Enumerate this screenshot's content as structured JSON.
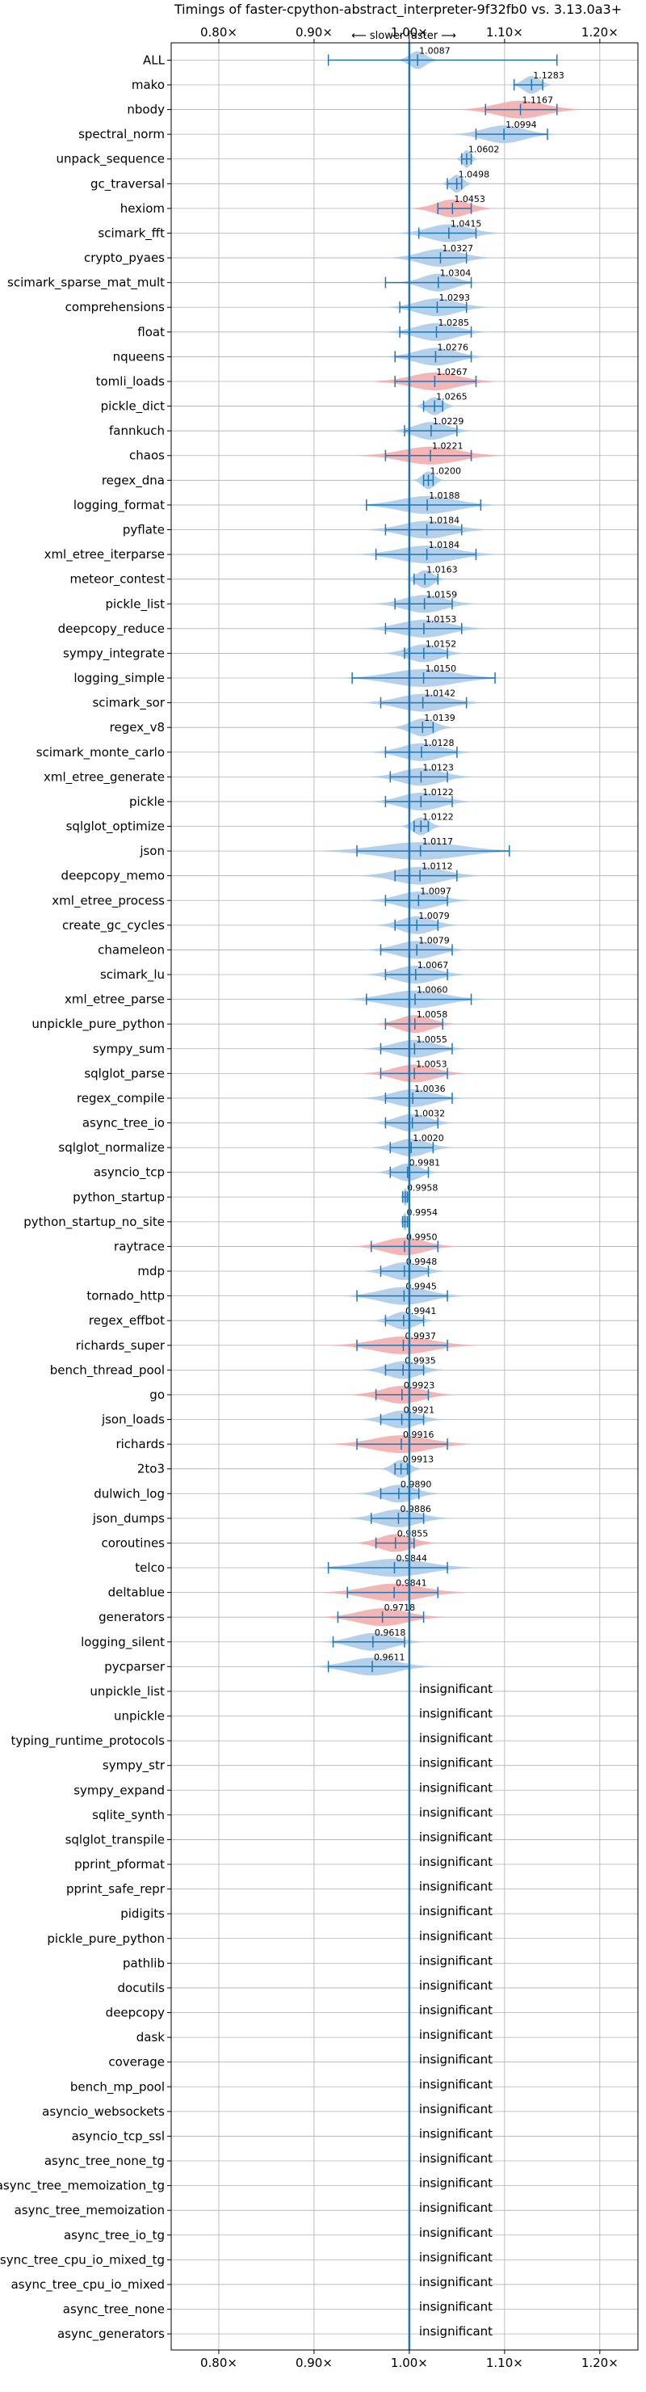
{
  "chart_data": {
    "type": "violin",
    "title": "Timings of faster-cpython-abstract_interpreter-9f32fb0 vs. 3.13.0a3+",
    "direction_label": "⟵ slower   faster ⟶",
    "xlabel": "",
    "ylabel": "",
    "xlim": [
      0.75,
      1.24
    ],
    "x_ticks": [
      0.8,
      0.9,
      1.0,
      1.1,
      1.2
    ],
    "x_tick_labels": [
      "0.80×",
      "0.90×",
      "1.00×",
      "1.10×",
      "1.20×"
    ],
    "grid": true,
    "reference_line": 1.0,
    "colors": {
      "faster": "#a8c8e8",
      "slower": "#f2a8aa",
      "line": "#1f77b4"
    },
    "insignificant_label": "insignificant",
    "benchmarks": [
      {
        "name": "ALL",
        "value": 1.0087,
        "min": 0.915,
        "max": 1.155,
        "spread": 0.02,
        "color": "blue"
      },
      {
        "name": "mako",
        "value": 1.1283,
        "min": 1.11,
        "max": 1.14,
        "spread": 0.02,
        "color": "blue"
      },
      {
        "name": "nbody",
        "value": 1.1167,
        "min": 1.08,
        "max": 1.155,
        "spread": 0.06,
        "color": "red"
      },
      {
        "name": "spectral_norm",
        "value": 1.0994,
        "min": 1.07,
        "max": 1.145,
        "spread": 0.05,
        "color": "blue"
      },
      {
        "name": "unpack_sequence",
        "value": 1.0602,
        "min": 1.055,
        "max": 1.065,
        "spread": 0.01,
        "color": "blue"
      },
      {
        "name": "gc_traversal",
        "value": 1.0498,
        "min": 1.04,
        "max": 1.055,
        "spread": 0.015,
        "color": "blue"
      },
      {
        "name": "hexiom",
        "value": 1.0453,
        "min": 1.03,
        "max": 1.065,
        "spread": 0.04,
        "color": "red"
      },
      {
        "name": "scimark_fft",
        "value": 1.0415,
        "min": 1.01,
        "max": 1.07,
        "spread": 0.05,
        "color": "blue"
      },
      {
        "name": "crypto_pyaes",
        "value": 1.0327,
        "min": 1.0,
        "max": 1.06,
        "spread": 0.05,
        "color": "blue"
      },
      {
        "name": "scimark_sparse_mat_mult",
        "value": 1.0304,
        "min": 0.975,
        "max": 1.065,
        "spread": 0.04,
        "color": "blue"
      },
      {
        "name": "comprehensions",
        "value": 1.0293,
        "min": 0.99,
        "max": 1.06,
        "spread": 0.05,
        "color": "blue"
      },
      {
        "name": "float",
        "value": 1.0285,
        "min": 0.99,
        "max": 1.065,
        "spread": 0.05,
        "color": "blue"
      },
      {
        "name": "nqueens",
        "value": 1.0276,
        "min": 0.985,
        "max": 1.065,
        "spread": 0.05,
        "color": "blue"
      },
      {
        "name": "tomli_loads",
        "value": 1.0267,
        "min": 0.985,
        "max": 1.07,
        "spread": 0.06,
        "color": "red"
      },
      {
        "name": "pickle_dict",
        "value": 1.0265,
        "min": 1.015,
        "max": 1.035,
        "spread": 0.02,
        "color": "blue"
      },
      {
        "name": "fannkuch",
        "value": 1.0229,
        "min": 0.995,
        "max": 1.05,
        "spread": 0.04,
        "color": "blue"
      },
      {
        "name": "chaos",
        "value": 1.0221,
        "min": 0.975,
        "max": 1.065,
        "spread": 0.07,
        "color": "red"
      },
      {
        "name": "regex_dna",
        "value": 1.02,
        "min": 1.015,
        "max": 1.025,
        "spread": 0.015,
        "color": "blue"
      },
      {
        "name": "logging_format",
        "value": 1.0188,
        "min": 0.955,
        "max": 1.075,
        "spread": 0.07,
        "color": "blue"
      },
      {
        "name": "pyflate",
        "value": 1.0184,
        "min": 0.975,
        "max": 1.055,
        "spread": 0.06,
        "color": "blue"
      },
      {
        "name": "xml_etree_iterparse",
        "value": 1.0184,
        "min": 0.965,
        "max": 1.07,
        "spread": 0.07,
        "color": "blue"
      },
      {
        "name": "meteor_contest",
        "value": 1.0163,
        "min": 1.005,
        "max": 1.03,
        "spread": 0.02,
        "color": "blue"
      },
      {
        "name": "pickle_list",
        "value": 1.0159,
        "min": 0.985,
        "max": 1.045,
        "spread": 0.05,
        "color": "blue"
      },
      {
        "name": "deepcopy_reduce",
        "value": 1.0153,
        "min": 0.975,
        "max": 1.055,
        "spread": 0.06,
        "color": "blue"
      },
      {
        "name": "sympy_integrate",
        "value": 1.0152,
        "min": 0.995,
        "max": 1.04,
        "spread": 0.04,
        "color": "blue"
      },
      {
        "name": "logging_simple",
        "value": 1.015,
        "min": 0.94,
        "max": 1.09,
        "spread": 0.08,
        "color": "blue"
      },
      {
        "name": "scimark_sor",
        "value": 1.0142,
        "min": 0.97,
        "max": 1.06,
        "spread": 0.06,
        "color": "blue"
      },
      {
        "name": "regex_v8",
        "value": 1.0139,
        "min": 1.0,
        "max": 1.025,
        "spread": 0.03,
        "color": "blue"
      },
      {
        "name": "scimark_monte_carlo",
        "value": 1.0128,
        "min": 0.975,
        "max": 1.05,
        "spread": 0.05,
        "color": "blue"
      },
      {
        "name": "xml_etree_generate",
        "value": 1.0123,
        "min": 0.98,
        "max": 1.04,
        "spread": 0.05,
        "color": "blue"
      },
      {
        "name": "pickle",
        "value": 1.0122,
        "min": 0.975,
        "max": 1.045,
        "spread": 0.05,
        "color": "blue"
      },
      {
        "name": "sqlglot_optimize",
        "value": 1.0122,
        "min": 1.005,
        "max": 1.02,
        "spread": 0.02,
        "color": "blue"
      },
      {
        "name": "json",
        "value": 1.0117,
        "min": 0.945,
        "max": 1.105,
        "spread": 0.1,
        "color": "blue"
      },
      {
        "name": "deepcopy_memo",
        "value": 1.0112,
        "min": 0.985,
        "max": 1.05,
        "spread": 0.06,
        "color": "blue"
      },
      {
        "name": "xml_etree_process",
        "value": 1.0097,
        "min": 0.975,
        "max": 1.04,
        "spread": 0.05,
        "color": "blue"
      },
      {
        "name": "create_gc_cycles",
        "value": 1.0079,
        "min": 0.985,
        "max": 1.03,
        "spread": 0.04,
        "color": "blue"
      },
      {
        "name": "chameleon",
        "value": 1.0079,
        "min": 0.97,
        "max": 1.045,
        "spread": 0.05,
        "color": "blue"
      },
      {
        "name": "scimark_lu",
        "value": 1.0067,
        "min": 0.975,
        "max": 1.04,
        "spread": 0.05,
        "color": "blue"
      },
      {
        "name": "xml_etree_parse",
        "value": 1.006,
        "min": 0.955,
        "max": 1.065,
        "spread": 0.07,
        "color": "blue"
      },
      {
        "name": "unpickle_pure_python",
        "value": 1.0058,
        "min": 0.975,
        "max": 1.035,
        "spread": 0.04,
        "color": "red"
      },
      {
        "name": "sympy_sum",
        "value": 1.0055,
        "min": 0.97,
        "max": 1.045,
        "spread": 0.05,
        "color": "blue"
      },
      {
        "name": "sqlglot_parse",
        "value": 1.0053,
        "min": 0.97,
        "max": 1.04,
        "spread": 0.05,
        "color": "red"
      },
      {
        "name": "regex_compile",
        "value": 1.0036,
        "min": 0.975,
        "max": 1.045,
        "spread": 0.05,
        "color": "blue"
      },
      {
        "name": "async_tree_io",
        "value": 1.0032,
        "min": 0.975,
        "max": 1.03,
        "spread": 0.04,
        "color": "blue"
      },
      {
        "name": "sqlglot_normalize",
        "value": 1.002,
        "min": 0.98,
        "max": 1.025,
        "spread": 0.04,
        "color": "blue"
      },
      {
        "name": "asyncio_tcp",
        "value": 0.9981,
        "min": 0.98,
        "max": 1.02,
        "spread": 0.03,
        "color": "blue"
      },
      {
        "name": "python_startup",
        "value": 0.9958,
        "min": 0.993,
        "max": 0.998,
        "spread": 0.005,
        "color": "blue"
      },
      {
        "name": "python_startup_no_site",
        "value": 0.9954,
        "min": 0.993,
        "max": 0.998,
        "spread": 0.005,
        "color": "blue"
      },
      {
        "name": "raytrace",
        "value": 0.995,
        "min": 0.96,
        "max": 1.03,
        "spread": 0.05,
        "color": "red"
      },
      {
        "name": "mdp",
        "value": 0.9948,
        "min": 0.97,
        "max": 1.02,
        "spread": 0.04,
        "color": "blue"
      },
      {
        "name": "tornado_http",
        "value": 0.9945,
        "min": 0.945,
        "max": 1.04,
        "spread": 0.06,
        "color": "blue"
      },
      {
        "name": "regex_effbot",
        "value": 0.9941,
        "min": 0.975,
        "max": 1.015,
        "spread": 0.03,
        "color": "blue"
      },
      {
        "name": "richards_super",
        "value": 0.9937,
        "min": 0.945,
        "max": 1.04,
        "spread": 0.07,
        "color": "red"
      },
      {
        "name": "bench_thread_pool",
        "value": 0.9935,
        "min": 0.975,
        "max": 1.015,
        "spread": 0.04,
        "color": "blue"
      },
      {
        "name": "go",
        "value": 0.9923,
        "min": 0.965,
        "max": 1.02,
        "spread": 0.05,
        "color": "red"
      },
      {
        "name": "json_loads",
        "value": 0.9921,
        "min": 0.97,
        "max": 1.015,
        "spread": 0.04,
        "color": "blue"
      },
      {
        "name": "richards",
        "value": 0.9916,
        "min": 0.945,
        "max": 1.04,
        "spread": 0.07,
        "color": "red"
      },
      {
        "name": "2to3",
        "value": 0.9913,
        "min": 0.985,
        "max": 0.998,
        "spread": 0.02,
        "color": "blue"
      },
      {
        "name": "dulwich_log",
        "value": 0.989,
        "min": 0.97,
        "max": 1.01,
        "spread": 0.04,
        "color": "blue"
      },
      {
        "name": "json_dumps",
        "value": 0.9886,
        "min": 0.96,
        "max": 1.015,
        "spread": 0.05,
        "color": "blue"
      },
      {
        "name": "coroutines",
        "value": 0.9855,
        "min": 0.965,
        "max": 1.005,
        "spread": 0.04,
        "color": "red"
      },
      {
        "name": "telco",
        "value": 0.9844,
        "min": 0.915,
        "max": 1.04,
        "spread": 0.08,
        "color": "blue"
      },
      {
        "name": "deltablue",
        "value": 0.9841,
        "min": 0.935,
        "max": 1.03,
        "spread": 0.07,
        "color": "red"
      },
      {
        "name": "generators",
        "value": 0.9718,
        "min": 0.925,
        "max": 1.015,
        "spread": 0.06,
        "color": "red"
      },
      {
        "name": "logging_silent",
        "value": 0.9618,
        "min": 0.92,
        "max": 0.995,
        "spread": 0.05,
        "color": "blue"
      },
      {
        "name": "pycparser",
        "value": 0.9611,
        "min": 0.915,
        "max": 1.0,
        "spread": 0.06,
        "color": "blue"
      },
      {
        "name": "unpickle_list",
        "value": null
      },
      {
        "name": "unpickle",
        "value": null
      },
      {
        "name": "typing_runtime_protocols",
        "value": null
      },
      {
        "name": "sympy_str",
        "value": null
      },
      {
        "name": "sympy_expand",
        "value": null
      },
      {
        "name": "sqlite_synth",
        "value": null
      },
      {
        "name": "sqlglot_transpile",
        "value": null
      },
      {
        "name": "pprint_pformat",
        "value": null
      },
      {
        "name": "pprint_safe_repr",
        "value": null
      },
      {
        "name": "pidigits",
        "value": null
      },
      {
        "name": "pickle_pure_python",
        "value": null
      },
      {
        "name": "pathlib",
        "value": null
      },
      {
        "name": "docutils",
        "value": null
      },
      {
        "name": "deepcopy",
        "value": null
      },
      {
        "name": "dask",
        "value": null
      },
      {
        "name": "coverage",
        "value": null
      },
      {
        "name": "bench_mp_pool",
        "value": null
      },
      {
        "name": "asyncio_websockets",
        "value": null
      },
      {
        "name": "asyncio_tcp_ssl",
        "value": null
      },
      {
        "name": "async_tree_none_tg",
        "value": null
      },
      {
        "name": "async_tree_memoization_tg",
        "value": null
      },
      {
        "name": "async_tree_memoization",
        "value": null
      },
      {
        "name": "async_tree_io_tg",
        "value": null
      },
      {
        "name": "async_tree_cpu_io_mixed_tg",
        "value": null
      },
      {
        "name": "async_tree_cpu_io_mixed",
        "value": null
      },
      {
        "name": "async_tree_none",
        "value": null
      },
      {
        "name": "async_generators",
        "value": null
      }
    ]
  }
}
